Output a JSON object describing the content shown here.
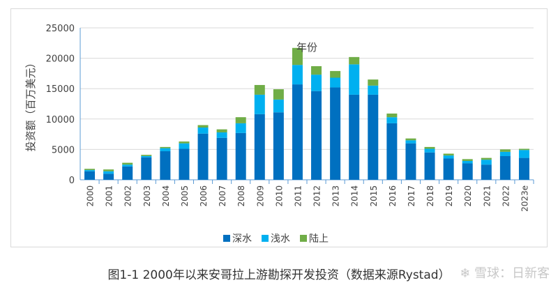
{
  "chart_data": {
    "type": "bar",
    "stacked": true,
    "xlabel": "年份",
    "ylabel": "投资额（百万美元）",
    "ylim": [
      0,
      25000
    ],
    "yticks": [
      0,
      5000,
      10000,
      15000,
      20000,
      25000
    ],
    "grid": true,
    "legend_position": "bottom",
    "categories": [
      "2000",
      "2001",
      "2002",
      "2003",
      "2004",
      "2005",
      "2006",
      "2007",
      "2008",
      "2009",
      "2010",
      "2011",
      "2012",
      "2013",
      "2014",
      "2015",
      "2016",
      "2017",
      "2018",
      "2019",
      "2020",
      "2021",
      "2022",
      "2023e"
    ],
    "series": [
      {
        "name": "深水",
        "color": "#0070c0",
        "values": [
          1400,
          1000,
          2200,
          3700,
          4700,
          5100,
          7600,
          6900,
          7700,
          10800,
          11100,
          15700,
          14600,
          15200,
          14000,
          14000,
          9300,
          6000,
          4500,
          3500,
          2700,
          2500,
          3900,
          3600
        ]
      },
      {
        "name": "浅水",
        "color": "#00b0f0",
        "values": [
          200,
          400,
          300,
          200,
          500,
          900,
          1000,
          900,
          1600,
          3200,
          2100,
          3200,
          2700,
          1600,
          5000,
          1500,
          1000,
          500,
          600,
          500,
          400,
          800,
          700,
          1300
        ]
      },
      {
        "name": "陆上",
        "color": "#70ad47",
        "values": [
          200,
          300,
          300,
          200,
          200,
          300,
          400,
          500,
          1000,
          1600,
          1700,
          2800,
          1400,
          1100,
          1200,
          1000,
          600,
          300,
          300,
          300,
          300,
          300,
          400,
          200
        ]
      }
    ]
  },
  "caption": "图1-1  2000年以来安哥拉上游勘探开发投资（数据来源Rystad）",
  "watermark": "雪球：日新客"
}
